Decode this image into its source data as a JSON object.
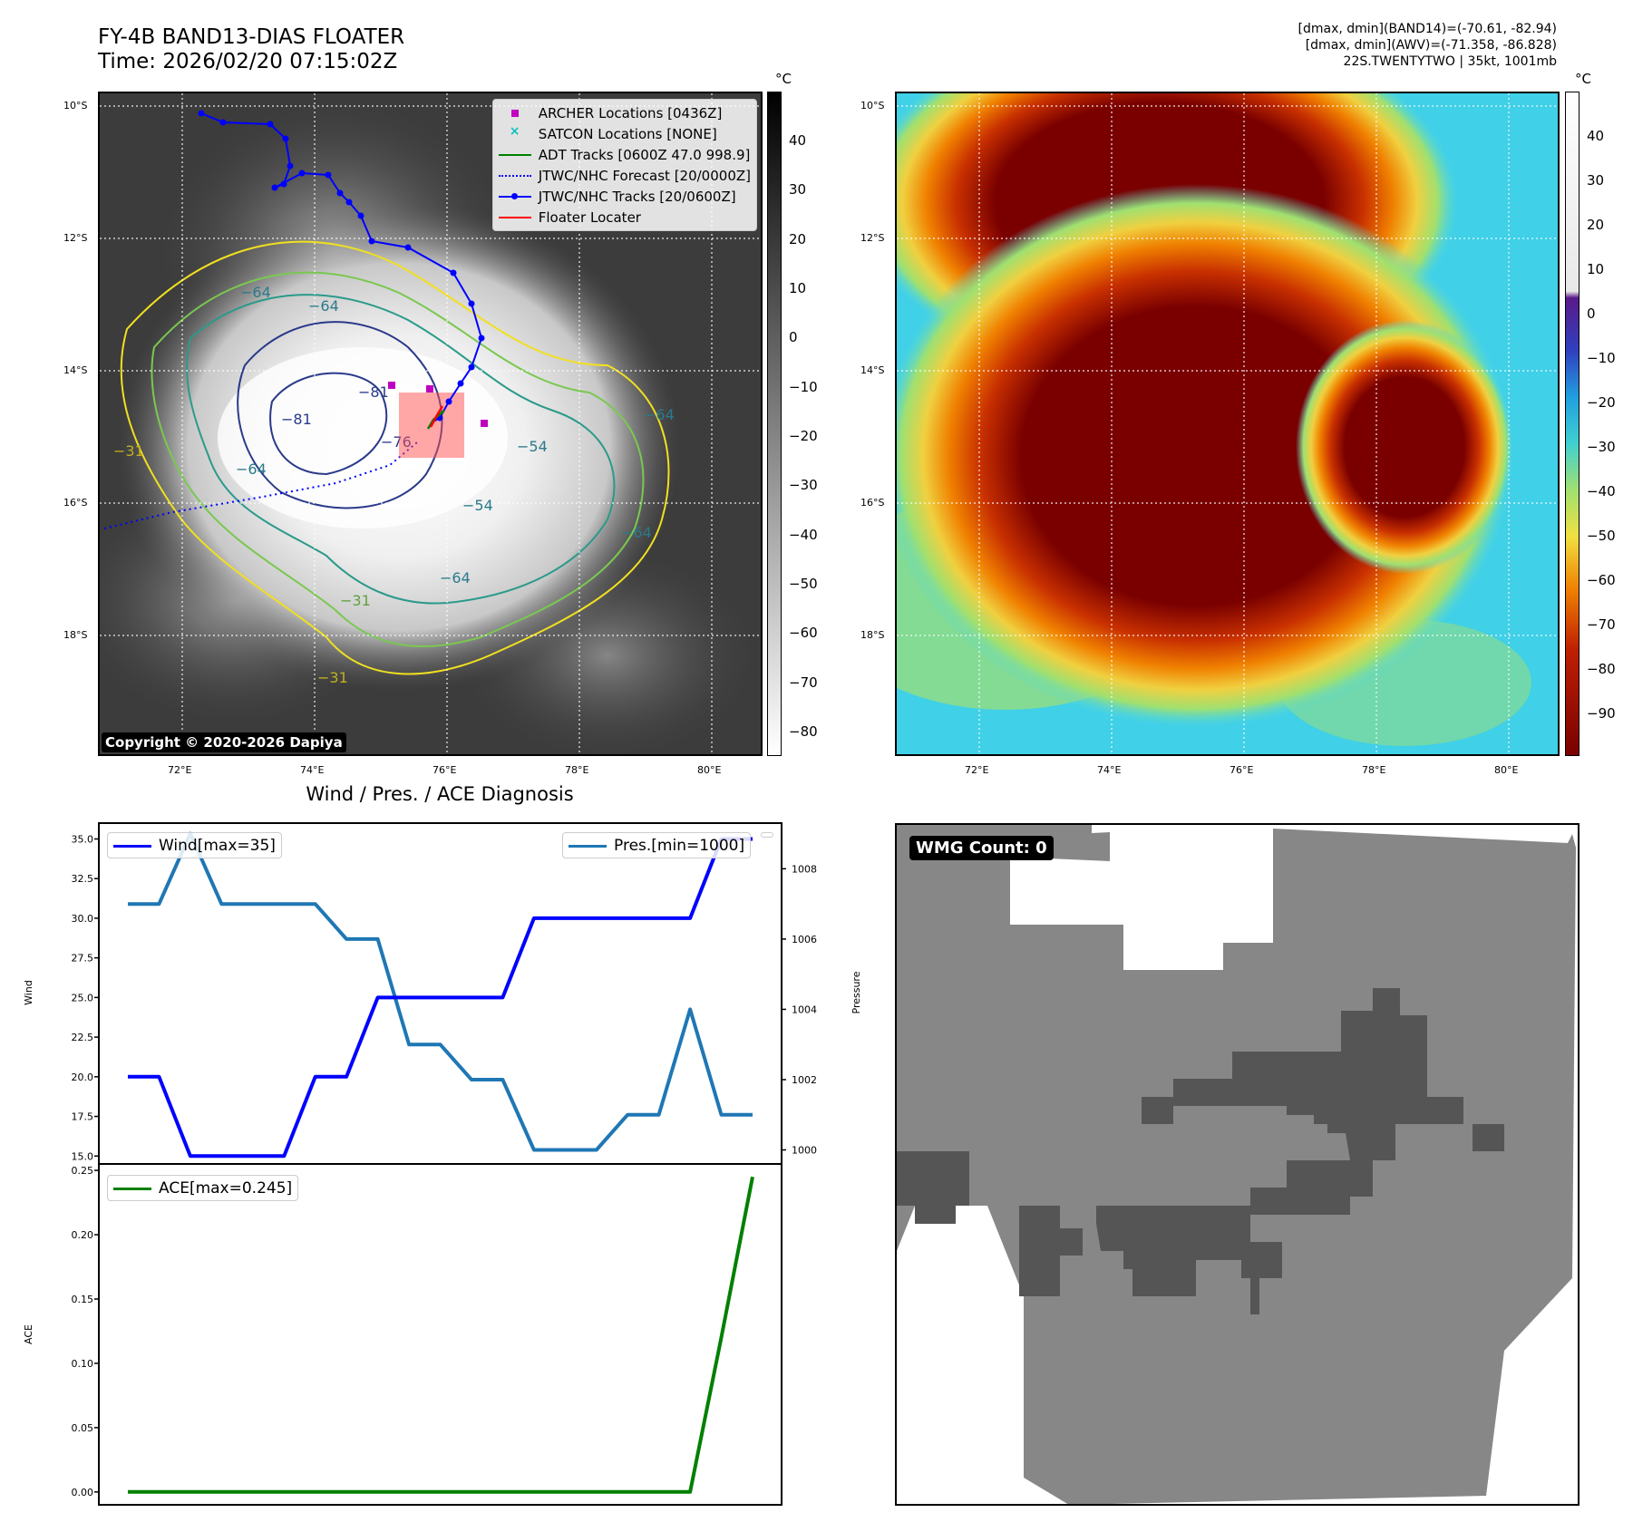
{
  "top_left": {
    "title_line1": "FY-4B BAND13-DIAS FLOATER",
    "title_line2": "Time: 2026/02/20 07:15:02Z",
    "copyright": "Copyright © 2020-2026 Dapiya",
    "colorbar_unit": "°C",
    "colorbar_ticks": [
      "40",
      "30",
      "20",
      "10",
      "0",
      "−10",
      "−20",
      "−30",
      "−40",
      "−50",
      "−60",
      "−70",
      "−80"
    ],
    "lat_labels": [
      "10°S",
      "12°S",
      "14°S",
      "16°S",
      "18°S"
    ],
    "lon_labels": [
      "72°E",
      "74°E",
      "76°E",
      "78°E",
      "80°E"
    ],
    "contour_labels": [
      "−64",
      "−64",
      "−81",
      "−81",
      "−76",
      "−64",
      "−31",
      "−54",
      "−64",
      "−54",
      "−64",
      "−31",
      "−31",
      "−64"
    ],
    "legend": [
      {
        "label": "ARCHER Locations [0436Z]",
        "color": "#c000c0"
      },
      {
        "label": "SATCON Locations [NONE]",
        "color": "#10c0c0"
      },
      {
        "label": "ADT Tracks [0600Z 47.0 998.9]",
        "color": "#008000"
      },
      {
        "label": "JTWC/NHC Forecast [20/0000Z]",
        "color": "#0000ff"
      },
      {
        "label": "JTWC/NHC Tracks [20/0600Z]",
        "color": "#0000ff"
      },
      {
        "label": "Floater Locater",
        "color": "#ff0000"
      }
    ]
  },
  "top_right": {
    "info_line1": "[dmax, dmin](BAND14)=(-70.61, -82.94)",
    "info_line2": "[dmax, dmin](AWV)=(-71.358, -86.828)",
    "info_line3": "22S.TWENTYTWO | 35kt, 1001mb",
    "colorbar_unit": "°C",
    "colorbar_ticks": [
      "40",
      "30",
      "20",
      "10",
      "0",
      "−10",
      "−20",
      "−30",
      "−40",
      "−50",
      "−60",
      "−70",
      "−80",
      "−90"
    ],
    "lat_labels": [
      "10°S",
      "12°S",
      "14°S",
      "16°S",
      "18°S"
    ],
    "lon_labels": [
      "72°E",
      "74°E",
      "76°E",
      "78°E",
      "80°E"
    ]
  },
  "diagnosis": {
    "title": "Wind / Pres. / ACE Diagnosis",
    "wind_ylabel": "Wind",
    "pres_ylabel": "Pressure",
    "ace_ylabel": "ACE",
    "wind_legend": "Wind[max=35]",
    "pres_legend": "Pres.[min=1000]",
    "ace_legend": "ACE[max=0.245]",
    "wind_ticks": [
      "35.0",
      "32.5",
      "30.0",
      "27.5",
      "25.0",
      "22.5",
      "20.0",
      "17.5",
      "15.0"
    ],
    "pres_ticks": [
      "1008",
      "1006",
      "1004",
      "1002",
      "1000"
    ],
    "ace_ticks": [
      "0.25",
      "0.20",
      "0.15",
      "0.10",
      "0.05",
      "0.00"
    ]
  },
  "wmg": {
    "label": "WMG Count: 0"
  },
  "chart_data": [
    {
      "type": "line",
      "title": "Wind / Pres. / ACE Diagnosis",
      "x": [
        0,
        1,
        2,
        3,
        4,
        5,
        6,
        7,
        8,
        9,
        10,
        11,
        12,
        13,
        14,
        15,
        16,
        17,
        18,
        19,
        20
      ],
      "series": [
        {
          "name": "Wind",
          "color": "#0000ff",
          "axis": "left",
          "values": [
            20,
            20,
            15,
            15,
            15,
            15,
            20,
            20,
            25,
            25,
            25,
            25,
            25,
            30,
            30,
            30,
            30,
            30,
            30,
            35,
            35
          ]
        },
        {
          "name": "Pressure",
          "color": "#1f77b4",
          "axis": "right",
          "values": [
            1007,
            1007,
            1009,
            1007,
            1007,
            1007,
            1007,
            1006,
            1006,
            1003,
            1003,
            1002,
            1002,
            1000,
            1000,
            1000,
            1001,
            1001,
            1004,
            1001,
            1001
          ]
        }
      ],
      "ylim_left": [
        14.5,
        36.0
      ],
      "ylim_right": [
        999.6,
        1009.3
      ],
      "ylabel": "Wind",
      "y2label": "Pressure"
    },
    {
      "type": "line",
      "x": [
        0,
        1,
        2,
        3,
        4,
        5,
        6,
        7,
        8,
        9,
        10,
        11,
        12,
        13,
        14,
        15,
        16,
        17,
        18,
        19,
        20
      ],
      "series": [
        {
          "name": "ACE",
          "color": "#008000",
          "values": [
            0,
            0,
            0,
            0,
            0,
            0,
            0,
            0,
            0,
            0,
            0,
            0,
            0,
            0,
            0,
            0,
            0,
            0,
            0,
            0.12,
            0.245
          ]
        }
      ],
      "ylim": [
        -0.01,
        0.255
      ],
      "ylabel": "ACE"
    }
  ]
}
